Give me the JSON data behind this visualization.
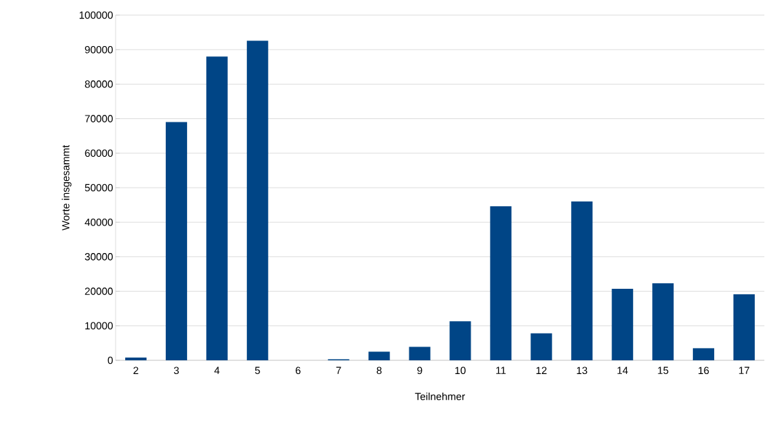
{
  "chart_data": {
    "type": "bar",
    "xlabel": "Teilnehmer",
    "ylabel": "Worte insgesammt",
    "categories": [
      "2",
      "3",
      "4",
      "5",
      "6",
      "7",
      "8",
      "9",
      "10",
      "11",
      "12",
      "13",
      "14",
      "15",
      "16",
      "17"
    ],
    "values": [
      800,
      69000,
      88000,
      92600,
      0,
      300,
      2500,
      3900,
      11300,
      44600,
      7800,
      46000,
      20700,
      22300,
      3500,
      19100
    ],
    "color": "#004586",
    "ylim": [
      0,
      100000
    ],
    "yticks": [
      0,
      10000,
      20000,
      30000,
      40000,
      50000,
      60000,
      70000,
      80000,
      90000,
      100000
    ],
    "grid": "y"
  }
}
